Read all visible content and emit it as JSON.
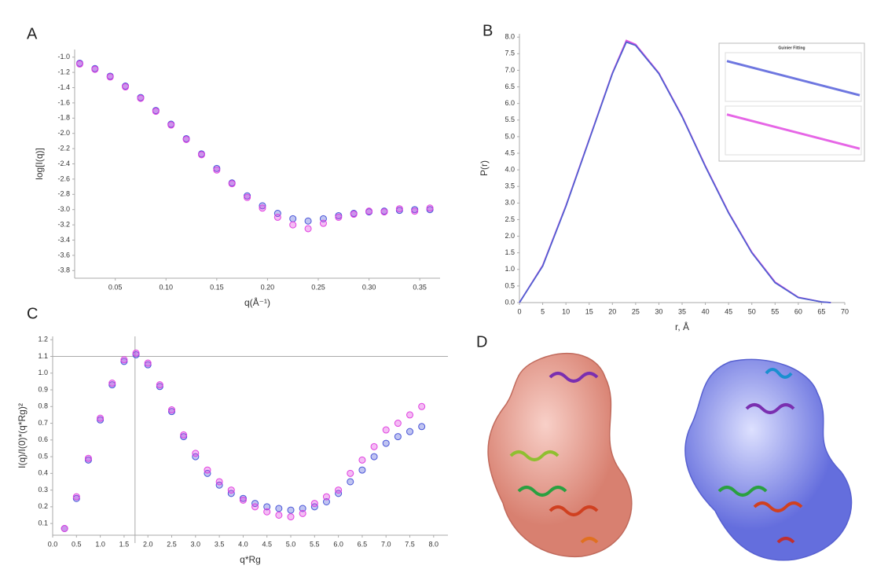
{
  "chart_data": [
    {
      "type": "scatter",
      "label": "A",
      "x_label": "q(Å⁻¹)",
      "y_label": "log[I(q)]",
      "x": [
        0.015,
        0.03,
        0.045,
        0.06,
        0.075,
        0.09,
        0.105,
        0.12,
        0.135,
        0.15,
        0.165,
        0.18,
        0.195,
        0.21,
        0.225,
        0.24,
        0.255,
        0.27,
        0.285,
        0.3,
        0.315,
        0.33,
        0.345,
        0.36
      ],
      "series": [
        {
          "color": "#4a55d8",
          "values": [
            -1.08,
            -1.15,
            -1.25,
            -1.38,
            -1.53,
            -1.7,
            -1.88,
            -2.07,
            -2.27,
            -2.46,
            -2.65,
            -2.82,
            -2.95,
            -3.05,
            -3.12,
            -3.15,
            -3.12,
            -3.08,
            -3.05,
            -3.03,
            -3.02,
            -3.01,
            -3.0,
            -3.0
          ]
        },
        {
          "color": "#e040e0",
          "values": [
            -1.09,
            -1.16,
            -1.26,
            -1.39,
            -1.54,
            -1.71,
            -1.89,
            -2.08,
            -2.28,
            -2.48,
            -2.66,
            -2.84,
            -2.98,
            -3.1,
            -3.2,
            -3.25,
            -3.18,
            -3.1,
            -3.06,
            -3.02,
            -3.03,
            -2.99,
            -3.02,
            -2.98
          ]
        }
      ],
      "xlim": [
        0.01,
        0.37
      ],
      "ylim": [
        -3.9,
        -0.9
      ],
      "xticks": [
        0.05,
        {
          "value": 0.1,
          "label": "0.10"
        },
        0.15,
        {
          "value": 0.2,
          "label": "0.20"
        },
        0.25,
        {
          "value": 0.3,
          "label": "0.30"
        },
        0.35
      ],
      "yticks": [
        {
          "value": -1,
          "label": "-1.0"
        },
        -1.2,
        -1.4,
        -1.6,
        -1.8,
        {
          "value": -2,
          "label": "-2.0"
        },
        -2.2,
        -2.4,
        -2.6,
        -2.8,
        {
          "value": -3,
          "label": "-3.0"
        },
        -3.2,
        -3.4,
        -3.6,
        -3.8
      ]
    },
    {
      "type": "line",
      "label": "B",
      "x_label": "r, Å",
      "y_label": "P(r)",
      "x": [
        0,
        5,
        10,
        15,
        20,
        23,
        25,
        30,
        35,
        40,
        45,
        50,
        55,
        60,
        65,
        67
      ],
      "series": [
        {
          "color": "#e050e0",
          "values": [
            0,
            1.12,
            2.92,
            4.92,
            6.92,
            7.9,
            7.78,
            6.92,
            5.62,
            4.12,
            2.72,
            1.52,
            0.62,
            0.16,
            0.02,
            0
          ]
        },
        {
          "color": "#5060d0",
          "values": [
            0,
            1.1,
            2.9,
            4.9,
            6.9,
            7.85,
            7.75,
            6.9,
            5.6,
            4.1,
            2.7,
            1.5,
            0.6,
            0.15,
            0.02,
            0
          ]
        }
      ],
      "xlim": [
        0,
        70
      ],
      "ylim": [
        0,
        8.1
      ],
      "xticks": [
        0,
        5,
        10,
        15,
        20,
        25,
        30,
        35,
        40,
        45,
        50,
        55,
        60,
        65,
        70
      ],
      "yticks": [
        {
          "value": 0,
          "label": "0.0"
        },
        0.5,
        {
          "value": 1,
          "label": "1.0"
        },
        1.5,
        {
          "value": 2,
          "label": "2.0"
        },
        2.5,
        {
          "value": 3,
          "label": "3.0"
        },
        3.5,
        {
          "value": 4,
          "label": "4.0"
        },
        4.5,
        {
          "value": 5,
          "label": "5.0"
        },
        5.5,
        {
          "value": 6,
          "label": "6.0"
        },
        6.5,
        {
          "value": 7,
          "label": "7.0"
        },
        7.5,
        {
          "value": 8,
          "label": "8.0"
        }
      ]
    },
    {
      "type": "inset",
      "title": "Guinier Fitting",
      "x": [
        0,
        1
      ],
      "series": [
        {
          "color": "#4a55d8",
          "values": [
            0.85,
            0.1
          ]
        },
        {
          "color": "#e040e0",
          "values": [
            0.85,
            0.1
          ]
        }
      ],
      "xlim": [
        0,
        1
      ],
      "ylim": [
        0,
        1
      ]
    },
    {
      "type": "scatter",
      "label": "C",
      "x_label": "q*Rg",
      "y_label": "I(q)/I(0)*(q*Rg)²",
      "vline": 1.73,
      "hline": 1.1,
      "x": [
        0.25,
        0.5,
        0.75,
        1.0,
        1.25,
        1.5,
        1.75,
        2.0,
        2.25,
        2.5,
        2.75,
        3.0,
        3.25,
        3.5,
        3.75,
        4.0,
        4.25,
        4.5,
        4.75,
        5.0,
        5.25,
        5.5,
        5.75,
        6.0,
        6.25,
        6.5,
        6.75,
        7.0,
        7.25,
        7.5,
        7.75
      ],
      "series": [
        {
          "color": "#4a55d8",
          "values": [
            0.07,
            0.25,
            0.48,
            0.72,
            0.93,
            1.07,
            1.11,
            1.05,
            0.92,
            0.77,
            0.62,
            0.5,
            0.4,
            0.33,
            0.28,
            0.25,
            0.22,
            0.2,
            0.19,
            0.18,
            0.19,
            0.2,
            0.23,
            0.28,
            0.35,
            0.42,
            0.5,
            0.58,
            0.62,
            0.65,
            0.68
          ]
        },
        {
          "color": "#e040e0",
          "values": [
            0.07,
            0.26,
            0.49,
            0.73,
            0.94,
            1.08,
            1.12,
            1.06,
            0.93,
            0.78,
            0.63,
            0.52,
            0.42,
            0.35,
            0.3,
            0.24,
            0.2,
            0.17,
            0.15,
            0.14,
            0.16,
            0.22,
            0.26,
            0.3,
            0.4,
            0.48,
            0.56,
            0.66,
            0.7,
            0.75,
            0.8
          ]
        }
      ],
      "xlim": [
        0,
        8.3
      ],
      "ylim": [
        0.03,
        1.22
      ],
      "xticks": [
        {
          "value": 0,
          "label": "0.0"
        },
        0.5,
        {
          "value": 1,
          "label": "1.0"
        },
        1.5,
        {
          "value": 2,
          "label": "2.0"
        },
        2.5,
        {
          "value": 3,
          "label": "3.0"
        },
        3.5,
        {
          "value": 4,
          "label": "4.0"
        },
        4.5,
        {
          "value": 5,
          "label": "5.0"
        },
        5.5,
        {
          "value": 6,
          "label": "6.0"
        },
        6.5,
        {
          "value": 7,
          "label": "7.0"
        },
        7.5,
        {
          "value": 8,
          "label": "8.0"
        }
      ],
      "yticks": [
        0.1,
        0.2,
        0.3,
        0.4,
        0.5,
        0.6,
        0.7,
        0.8,
        0.9,
        {
          "value": 1,
          "label": "1.0"
        },
        1.1,
        1.2
      ]
    }
  ],
  "panel_d": {
    "label": "D"
  }
}
